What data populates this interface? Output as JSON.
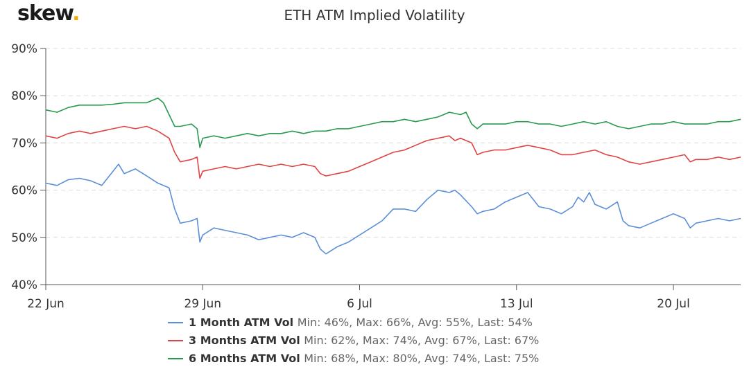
{
  "logo": {
    "text": "skew",
    "dot": "."
  },
  "chart_data": {
    "type": "line",
    "title": "ETH ATM Implied Volatility",
    "xlabel": "",
    "ylabel": "",
    "x_range": [
      "2020-06-22",
      "2020-07-23"
    ],
    "x_ticks": [
      {
        "date": "2020-06-22",
        "label": "22 Jun"
      },
      {
        "date": "2020-06-29",
        "label": "29 Jun"
      },
      {
        "date": "2020-07-06",
        "label": "6 Jul"
      },
      {
        "date": "2020-07-13",
        "label": "13 Jul"
      },
      {
        "date": "2020-07-20",
        "label": "20 Jul"
      }
    ],
    "ylim": [
      40,
      90
    ],
    "y_ticks": [
      {
        "value": 40,
        "label": "40%"
      },
      {
        "value": 50,
        "label": "50%"
      },
      {
        "value": 60,
        "label": "60%"
      },
      {
        "value": 70,
        "label": "70%"
      },
      {
        "value": 80,
        "label": "80%"
      },
      {
        "value": 90,
        "label": "90%"
      }
    ],
    "grid": "horizontal-dashed",
    "legend_position": "bottom",
    "series": [
      {
        "name": "1 Month ATM Vol",
        "stats": "Min: 46%, Max: 66%, Avg: 55%, Last: 54%",
        "color": "#5b8fd8",
        "points": [
          [
            "2020-06-22T00:00",
            61.5
          ],
          [
            "2020-06-22T12:00",
            61.0
          ],
          [
            "2020-06-23T00:00",
            62.2
          ],
          [
            "2020-06-23T12:00",
            62.5
          ],
          [
            "2020-06-24T00:00",
            62.0
          ],
          [
            "2020-06-24T12:00",
            61.0
          ],
          [
            "2020-06-25T00:00",
            64.0
          ],
          [
            "2020-06-25T06:00",
            65.5
          ],
          [
            "2020-06-25T12:00",
            63.5
          ],
          [
            "2020-06-26T00:00",
            64.5
          ],
          [
            "2020-06-26T12:00",
            63.0
          ],
          [
            "2020-06-27T00:00",
            61.5
          ],
          [
            "2020-06-27T12:00",
            60.5
          ],
          [
            "2020-06-27T18:00",
            56.0
          ],
          [
            "2020-06-28T00:00",
            53.0
          ],
          [
            "2020-06-28T12:00",
            53.5
          ],
          [
            "2020-06-28T18:00",
            54.0
          ],
          [
            "2020-06-28T21:00",
            49.0
          ],
          [
            "2020-06-29T00:00",
            50.5
          ],
          [
            "2020-06-29T12:00",
            52.0
          ],
          [
            "2020-06-30T00:00",
            51.5
          ],
          [
            "2020-06-30T12:00",
            51.0
          ],
          [
            "2020-07-01T00:00",
            50.5
          ],
          [
            "2020-07-01T12:00",
            49.5
          ],
          [
            "2020-07-02T00:00",
            50.0
          ],
          [
            "2020-07-02T12:00",
            50.5
          ],
          [
            "2020-07-03T00:00",
            50.0
          ],
          [
            "2020-07-03T12:00",
            51.0
          ],
          [
            "2020-07-04T00:00",
            50.0
          ],
          [
            "2020-07-04T06:00",
            47.5
          ],
          [
            "2020-07-04T12:00",
            46.5
          ],
          [
            "2020-07-05T00:00",
            48.0
          ],
          [
            "2020-07-05T12:00",
            49.0
          ],
          [
            "2020-07-06T00:00",
            50.5
          ],
          [
            "2020-07-06T12:00",
            52.0
          ],
          [
            "2020-07-07T00:00",
            53.5
          ],
          [
            "2020-07-07T12:00",
            56.0
          ],
          [
            "2020-07-08T00:00",
            56.0
          ],
          [
            "2020-07-08T12:00",
            55.5
          ],
          [
            "2020-07-09T00:00",
            58.0
          ],
          [
            "2020-07-09T12:00",
            60.0
          ],
          [
            "2020-07-10T00:00",
            59.5
          ],
          [
            "2020-07-10T06:00",
            60.0
          ],
          [
            "2020-07-10T12:00",
            59.0
          ],
          [
            "2020-07-11T00:00",
            56.5
          ],
          [
            "2020-07-11T06:00",
            55.0
          ],
          [
            "2020-07-11T12:00",
            55.5
          ],
          [
            "2020-07-12T00:00",
            56.0
          ],
          [
            "2020-07-12T12:00",
            57.5
          ],
          [
            "2020-07-13T00:00",
            58.5
          ],
          [
            "2020-07-13T12:00",
            59.5
          ],
          [
            "2020-07-14T00:00",
            56.5
          ],
          [
            "2020-07-14T12:00",
            56.0
          ],
          [
            "2020-07-15T00:00",
            55.0
          ],
          [
            "2020-07-15T12:00",
            56.5
          ],
          [
            "2020-07-15T18:00",
            58.5
          ],
          [
            "2020-07-16T00:00",
            57.5
          ],
          [
            "2020-07-16T06:00",
            59.5
          ],
          [
            "2020-07-16T12:00",
            57.0
          ],
          [
            "2020-07-17T00:00",
            56.0
          ],
          [
            "2020-07-17T12:00",
            57.5
          ],
          [
            "2020-07-17T18:00",
            53.5
          ],
          [
            "2020-07-18T00:00",
            52.5
          ],
          [
            "2020-07-18T12:00",
            52.0
          ],
          [
            "2020-07-19T00:00",
            53.0
          ],
          [
            "2020-07-19T12:00",
            54.0
          ],
          [
            "2020-07-20T00:00",
            55.0
          ],
          [
            "2020-07-20T12:00",
            54.0
          ],
          [
            "2020-07-20T18:00",
            52.0
          ],
          [
            "2020-07-21T00:00",
            53.0
          ],
          [
            "2020-07-21T12:00",
            53.5
          ],
          [
            "2020-07-22T00:00",
            54.0
          ],
          [
            "2020-07-22T12:00",
            53.5
          ],
          [
            "2020-07-23T00:00",
            54.0
          ]
        ]
      },
      {
        "name": "3 Months ATM Vol",
        "stats": "Min: 62%, Max: 74%, Avg: 67%, Last: 67%",
        "color": "#e04343",
        "points": [
          [
            "2020-06-22T00:00",
            71.5
          ],
          [
            "2020-06-22T12:00",
            71.0
          ],
          [
            "2020-06-23T00:00",
            72.0
          ],
          [
            "2020-06-23T12:00",
            72.5
          ],
          [
            "2020-06-24T00:00",
            72.0
          ],
          [
            "2020-06-24T12:00",
            72.5
          ],
          [
            "2020-06-25T00:00",
            73.0
          ],
          [
            "2020-06-25T12:00",
            73.5
          ],
          [
            "2020-06-26T00:00",
            73.0
          ],
          [
            "2020-06-26T12:00",
            73.5
          ],
          [
            "2020-06-27T00:00",
            72.5
          ],
          [
            "2020-06-27T12:00",
            71.0
          ],
          [
            "2020-06-27T18:00",
            68.0
          ],
          [
            "2020-06-28T00:00",
            66.0
          ],
          [
            "2020-06-28T12:00",
            66.5
          ],
          [
            "2020-06-28T18:00",
            67.0
          ],
          [
            "2020-06-28T21:00",
            62.5
          ],
          [
            "2020-06-29T00:00",
            64.0
          ],
          [
            "2020-06-29T12:00",
            64.5
          ],
          [
            "2020-06-30T00:00",
            65.0
          ],
          [
            "2020-06-30T12:00",
            64.5
          ],
          [
            "2020-07-01T00:00",
            65.0
          ],
          [
            "2020-07-01T12:00",
            65.5
          ],
          [
            "2020-07-02T00:00",
            65.0
          ],
          [
            "2020-07-02T12:00",
            65.5
          ],
          [
            "2020-07-03T00:00",
            65.0
          ],
          [
            "2020-07-03T12:00",
            65.5
          ],
          [
            "2020-07-04T00:00",
            65.0
          ],
          [
            "2020-07-04T06:00",
            63.5
          ],
          [
            "2020-07-04T12:00",
            63.0
          ],
          [
            "2020-07-05T00:00",
            63.5
          ],
          [
            "2020-07-05T12:00",
            64.0
          ],
          [
            "2020-07-06T00:00",
            65.0
          ],
          [
            "2020-07-06T12:00",
            66.0
          ],
          [
            "2020-07-07T00:00",
            67.0
          ],
          [
            "2020-07-07T12:00",
            68.0
          ],
          [
            "2020-07-08T00:00",
            68.5
          ],
          [
            "2020-07-08T12:00",
            69.5
          ],
          [
            "2020-07-09T00:00",
            70.5
          ],
          [
            "2020-07-09T12:00",
            71.0
          ],
          [
            "2020-07-10T00:00",
            71.5
          ],
          [
            "2020-07-10T06:00",
            70.5
          ],
          [
            "2020-07-10T12:00",
            71.0
          ],
          [
            "2020-07-11T00:00",
            70.0
          ],
          [
            "2020-07-11T06:00",
            67.5
          ],
          [
            "2020-07-11T12:00",
            68.0
          ],
          [
            "2020-07-12T00:00",
            68.5
          ],
          [
            "2020-07-12T12:00",
            68.5
          ],
          [
            "2020-07-13T00:00",
            69.0
          ],
          [
            "2020-07-13T12:00",
            69.5
          ],
          [
            "2020-07-14T00:00",
            69.0
          ],
          [
            "2020-07-14T12:00",
            68.5
          ],
          [
            "2020-07-15T00:00",
            67.5
          ],
          [
            "2020-07-15T12:00",
            67.5
          ],
          [
            "2020-07-16T00:00",
            68.0
          ],
          [
            "2020-07-16T12:00",
            68.5
          ],
          [
            "2020-07-17T00:00",
            67.5
          ],
          [
            "2020-07-17T12:00",
            67.0
          ],
          [
            "2020-07-18T00:00",
            66.0
          ],
          [
            "2020-07-18T12:00",
            65.5
          ],
          [
            "2020-07-19T00:00",
            66.0
          ],
          [
            "2020-07-19T12:00",
            66.5
          ],
          [
            "2020-07-20T00:00",
            67.0
          ],
          [
            "2020-07-20T12:00",
            67.5
          ],
          [
            "2020-07-20T18:00",
            66.0
          ],
          [
            "2020-07-21T00:00",
            66.5
          ],
          [
            "2020-07-21T12:00",
            66.5
          ],
          [
            "2020-07-22T00:00",
            67.0
          ],
          [
            "2020-07-22T12:00",
            66.5
          ],
          [
            "2020-07-23T00:00",
            67.0
          ]
        ]
      },
      {
        "name": "6 Months ATM Vol",
        "stats": "Min: 68%, Max: 80%, Avg: 74%, Last: 75%",
        "color": "#279a4e",
        "points": [
          [
            "2020-06-22T00:00",
            77.0
          ],
          [
            "2020-06-22T12:00",
            76.5
          ],
          [
            "2020-06-23T00:00",
            77.5
          ],
          [
            "2020-06-23T12:00",
            78.0
          ],
          [
            "2020-06-24T00:00",
            78.0
          ],
          [
            "2020-06-24T12:00",
            78.0
          ],
          [
            "2020-06-25T00:00",
            78.2
          ],
          [
            "2020-06-25T12:00",
            78.5
          ],
          [
            "2020-06-26T00:00",
            78.5
          ],
          [
            "2020-06-26T12:00",
            78.5
          ],
          [
            "2020-06-27T00:00",
            79.5
          ],
          [
            "2020-06-27T06:00",
            78.5
          ],
          [
            "2020-06-27T12:00",
            76.0
          ],
          [
            "2020-06-27T18:00",
            73.5
          ],
          [
            "2020-06-28T00:00",
            73.5
          ],
          [
            "2020-06-28T12:00",
            74.0
          ],
          [
            "2020-06-28T18:00",
            73.0
          ],
          [
            "2020-06-28T21:00",
            69.0
          ],
          [
            "2020-06-29T00:00",
            71.0
          ],
          [
            "2020-06-29T12:00",
            71.5
          ],
          [
            "2020-06-30T00:00",
            71.0
          ],
          [
            "2020-06-30T12:00",
            71.5
          ],
          [
            "2020-07-01T00:00",
            72.0
          ],
          [
            "2020-07-01T12:00",
            71.5
          ],
          [
            "2020-07-02T00:00",
            72.0
          ],
          [
            "2020-07-02T12:00",
            72.0
          ],
          [
            "2020-07-03T00:00",
            72.5
          ],
          [
            "2020-07-03T12:00",
            72.0
          ],
          [
            "2020-07-04T00:00",
            72.5
          ],
          [
            "2020-07-04T12:00",
            72.5
          ],
          [
            "2020-07-05T00:00",
            73.0
          ],
          [
            "2020-07-05T12:00",
            73.0
          ],
          [
            "2020-07-06T00:00",
            73.5
          ],
          [
            "2020-07-06T12:00",
            74.0
          ],
          [
            "2020-07-07T00:00",
            74.5
          ],
          [
            "2020-07-07T12:00",
            74.5
          ],
          [
            "2020-07-08T00:00",
            75.0
          ],
          [
            "2020-07-08T12:00",
            74.5
          ],
          [
            "2020-07-09T00:00",
            75.0
          ],
          [
            "2020-07-09T12:00",
            75.5
          ],
          [
            "2020-07-10T00:00",
            76.5
          ],
          [
            "2020-07-10T12:00",
            76.0
          ],
          [
            "2020-07-10T18:00",
            76.5
          ],
          [
            "2020-07-11T00:00",
            74.0
          ],
          [
            "2020-07-11T06:00",
            73.0
          ],
          [
            "2020-07-11T12:00",
            74.0
          ],
          [
            "2020-07-12T00:00",
            74.0
          ],
          [
            "2020-07-12T12:00",
            74.0
          ],
          [
            "2020-07-13T00:00",
            74.5
          ],
          [
            "2020-07-13T12:00",
            74.5
          ],
          [
            "2020-07-14T00:00",
            74.0
          ],
          [
            "2020-07-14T12:00",
            74.0
          ],
          [
            "2020-07-15T00:00",
            73.5
          ],
          [
            "2020-07-15T12:00",
            74.0
          ],
          [
            "2020-07-16T00:00",
            74.5
          ],
          [
            "2020-07-16T12:00",
            74.0
          ],
          [
            "2020-07-17T00:00",
            74.5
          ],
          [
            "2020-07-17T12:00",
            73.5
          ],
          [
            "2020-07-18T00:00",
            73.0
          ],
          [
            "2020-07-18T12:00",
            73.5
          ],
          [
            "2020-07-19T00:00",
            74.0
          ],
          [
            "2020-07-19T12:00",
            74.0
          ],
          [
            "2020-07-20T00:00",
            74.5
          ],
          [
            "2020-07-20T12:00",
            74.0
          ],
          [
            "2020-07-21T00:00",
            74.0
          ],
          [
            "2020-07-21T12:00",
            74.0
          ],
          [
            "2020-07-22T00:00",
            74.5
          ],
          [
            "2020-07-22T12:00",
            74.5
          ],
          [
            "2020-07-23T00:00",
            75.0
          ]
        ]
      }
    ]
  }
}
